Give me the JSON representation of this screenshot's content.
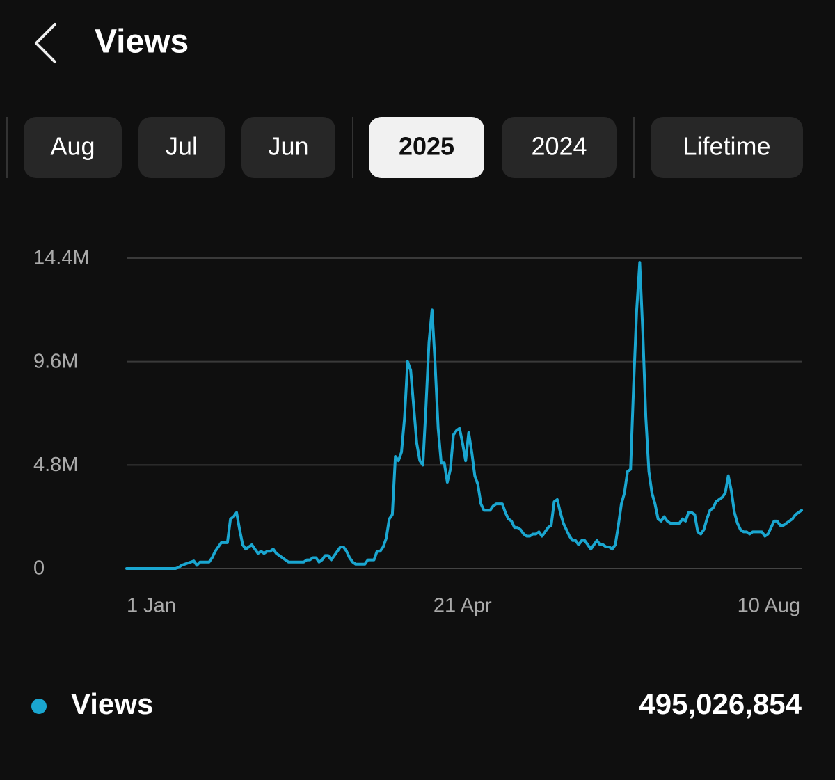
{
  "header": {
    "title": "Views"
  },
  "tabs": {
    "items": [
      "Aug",
      "Jul",
      "Jun",
      "2025",
      "2024",
      "Lifetime"
    ],
    "selected": 3
  },
  "chart_data": {
    "type": "line",
    "categories": [
      "1 Jan",
      null,
      null,
      null,
      null,
      null,
      null,
      null,
      null,
      null,
      null,
      null,
      null,
      null,
      null,
      null,
      null,
      null,
      null,
      null,
      null,
      null,
      null,
      null,
      null,
      null,
      null,
      null,
      null,
      null,
      null,
      null,
      null,
      null,
      null,
      null,
      null,
      null,
      null,
      null,
      null,
      null,
      null,
      null,
      null,
      null,
      null,
      null,
      null,
      null,
      null,
      null,
      null,
      null,
      null,
      null,
      null,
      null,
      null,
      null,
      null,
      null,
      null,
      null,
      null,
      null,
      null,
      null,
      null,
      null,
      null,
      null,
      null,
      null,
      null,
      null,
      null,
      null,
      null,
      null,
      null,
      null,
      null,
      null,
      null,
      null,
      null,
      null,
      null,
      null,
      null,
      null,
      null,
      null,
      null,
      null,
      null,
      null,
      null,
      null,
      null,
      null,
      null,
      null,
      null,
      null,
      null,
      null,
      null,
      null,
      "21 Apr",
      null,
      null,
      null,
      null,
      null,
      null,
      null,
      null,
      null,
      null,
      null,
      null,
      null,
      null,
      null,
      null,
      null,
      null,
      null,
      null,
      null,
      null,
      null,
      null,
      null,
      null,
      null,
      null,
      null,
      null,
      null,
      null,
      null,
      null,
      null,
      null,
      null,
      null,
      null,
      null,
      null,
      null,
      null,
      null,
      null,
      null,
      null,
      null,
      null,
      null,
      null,
      null,
      null,
      null,
      null,
      null,
      null,
      null,
      null,
      null,
      null,
      null,
      null,
      null,
      null,
      null,
      null,
      null,
      null,
      null,
      null,
      null,
      null,
      null,
      null,
      null,
      null,
      null,
      null,
      null,
      null,
      null,
      null,
      null,
      null,
      null,
      null,
      null,
      null,
      null,
      null,
      null,
      null,
      null,
      null,
      null,
      null,
      null,
      null,
      null,
      null,
      null,
      null,
      null,
      null,
      null,
      null,
      null,
      null,
      null,
      "10 Aug"
    ],
    "series": [
      {
        "name": "Views",
        "color": "#1aa6d0",
        "values": [
          0,
          0,
          0,
          0,
          0,
          0,
          0,
          0,
          0,
          0,
          0,
          0,
          0,
          0,
          0,
          0,
          0,
          50000,
          150000,
          200000,
          250000,
          300000,
          350000,
          150000,
          300000,
          300000,
          300000,
          300000,
          500000,
          800000,
          1000000,
          1200000,
          1200000,
          1200000,
          2300000,
          2400000,
          2600000,
          1800000,
          1100000,
          900000,
          1000000,
          1100000,
          900000,
          700000,
          800000,
          700000,
          800000,
          800000,
          900000,
          700000,
          600000,
          500000,
          400000,
          300000,
          300000,
          300000,
          300000,
          300000,
          300000,
          400000,
          400000,
          500000,
          500000,
          300000,
          400000,
          600000,
          600000,
          400000,
          600000,
          800000,
          1000000,
          1000000,
          800000,
          500000,
          300000,
          200000,
          200000,
          200000,
          200000,
          400000,
          400000,
          400000,
          800000,
          800000,
          1000000,
          1400000,
          2300000,
          2500000,
          5200000,
          5000000,
          5400000,
          7000000,
          9600000,
          9200000,
          7500000,
          5800000,
          5000000,
          4800000,
          7500000,
          10500000,
          12000000,
          9500000,
          6500000,
          4900000,
          4900000,
          4000000,
          4600000,
          6200000,
          6400000,
          6500000,
          5800000,
          5000000,
          6300000,
          5400000,
          4300000,
          3900000,
          3000000,
          2700000,
          2700000,
          2700000,
          2900000,
          3000000,
          3000000,
          3000000,
          2600000,
          2300000,
          2200000,
          1900000,
          1900000,
          1800000,
          1600000,
          1500000,
          1500000,
          1600000,
          1600000,
          1700000,
          1500000,
          1700000,
          1900000,
          2000000,
          3100000,
          3200000,
          2600000,
          2100000,
          1800000,
          1500000,
          1300000,
          1300000,
          1100000,
          1300000,
          1300000,
          1100000,
          900000,
          1100000,
          1300000,
          1100000,
          1100000,
          1000000,
          1000000,
          900000,
          1100000,
          2000000,
          3000000,
          3500000,
          4500000,
          4600000,
          8500000,
          12000000,
          14200000,
          11000000,
          7000000,
          4500000,
          3500000,
          3000000,
          2300000,
          2200000,
          2400000,
          2200000,
          2100000,
          2100000,
          2100000,
          2100000,
          2300000,
          2200000,
          2600000,
          2600000,
          2500000,
          1700000,
          1600000,
          1800000,
          2300000,
          2700000,
          2800000,
          3100000,
          3200000,
          3300000,
          3500000,
          4300000,
          3600000,
          2600000,
          2100000,
          1800000,
          1700000,
          1700000,
          1600000,
          1700000,
          1700000,
          1700000,
          1700000,
          1500000,
          1600000,
          1900000,
          2200000,
          2200000,
          2000000,
          2000000,
          2100000,
          2200000,
          2300000,
          2500000,
          2600000,
          2700000
        ]
      }
    ],
    "ylim": [
      0,
      14400000
    ],
    "yticks": [
      0,
      {
        "value": 4800000,
        "label": "4.8M"
      },
      {
        "value": 9600000,
        "label": "9.6M"
      },
      {
        "value": 14400000,
        "label": "14.4M"
      }
    ],
    "grid": true
  },
  "summary": {
    "total": "495,026,854"
  }
}
